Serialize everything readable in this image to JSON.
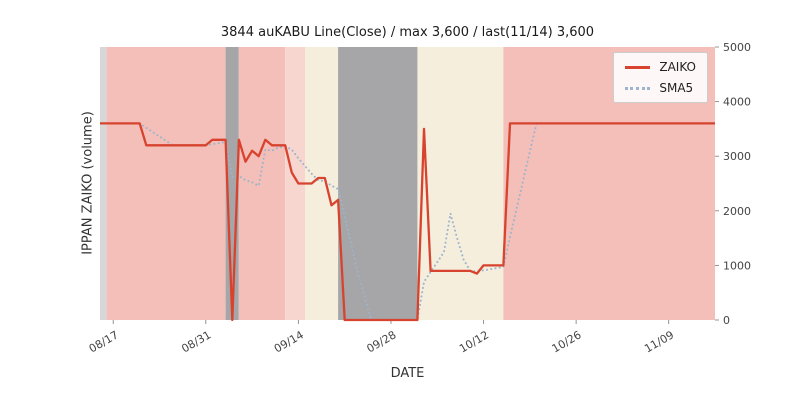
{
  "title": "3844 auKABU Line(Close) / max 3,600 / last(11/14) 3,600",
  "xlabel": "DATE",
  "ylabel": "IPPAN ZAIKO (volume)",
  "legend": {
    "zaiko": "ZAIKO",
    "sma5": "SMA5"
  },
  "colors": {
    "zaiko": "#d7432e",
    "sma5": "#9db4cc",
    "band_pink": "#f3bfb8",
    "band_lightpink": "#f7d6d0",
    "band_cream": "#f5eedd",
    "band_gray": "#a6a6a8",
    "band_lightgray": "#d7d7d7",
    "axis_text": "#444444",
    "tick_mark": "#888888"
  },
  "chart_data": {
    "type": "line",
    "max": 3600,
    "last_date": "11/14",
    "last_value": 3600,
    "n_points": 94,
    "ylim": [
      0,
      5000
    ],
    "yticks": [
      0,
      1000,
      2000,
      3000,
      4000,
      5000
    ],
    "tick_labels": [
      "08/17",
      "08/31",
      "09/14",
      "09/28",
      "10/12",
      "10/26",
      "11/09"
    ],
    "tick_indices": [
      2,
      16,
      30,
      44,
      58,
      72,
      86
    ],
    "series": [
      {
        "name": "ZAIKO",
        "color_key": "zaiko",
        "style": "solid",
        "values": [
          3600,
          3600,
          3600,
          3600,
          3600,
          3600,
          3600,
          3200,
          3200,
          3200,
          3200,
          3200,
          3200,
          3200,
          3200,
          3200,
          3200,
          3300,
          3300,
          3300,
          0,
          3300,
          2900,
          3100,
          3000,
          3300,
          3200,
          3200,
          3200,
          2700,
          2500,
          2500,
          2500,
          2600,
          2600,
          2100,
          2200,
          0,
          0,
          0,
          0,
          0,
          0,
          0,
          0,
          0,
          0,
          0,
          0,
          3500,
          900,
          900,
          900,
          900,
          900,
          900,
          900,
          850,
          1000,
          1000,
          1000,
          1000,
          3600,
          3600,
          3600,
          3600,
          3600,
          3600,
          3600,
          3600,
          3600,
          3600,
          3600,
          3600,
          3600,
          3600,
          3600,
          3600,
          3600,
          3600,
          3600,
          3600,
          3600,
          3600,
          3600,
          3600,
          3600,
          3600,
          3600,
          3600,
          3600,
          3600,
          3600,
          3600
        ]
      },
      {
        "name": "SMA5",
        "color_key": "sma5",
        "style": "dotted",
        "values": [
          null,
          null,
          null,
          null,
          3600,
          3600,
          3600,
          3520,
          3440,
          3360,
          3280,
          3200,
          3200,
          3200,
          3200,
          3200,
          3200,
          3220,
          3240,
          3260,
          2620,
          2640,
          2560,
          2520,
          2460,
          3120,
          3100,
          3160,
          3180,
          3120,
          2960,
          2820,
          2680,
          2560,
          2540,
          2460,
          2400,
          1900,
          1380,
          860,
          440,
          0,
          0,
          0,
          0,
          0,
          0,
          0,
          0,
          700,
          880,
          1060,
          1240,
          1950,
          1500,
          1100,
          900,
          890,
          910,
          930,
          950,
          970,
          1520,
          2040,
          2560,
          3080,
          3600,
          3600,
          3600,
          3600,
          3600,
          3600,
          3600,
          3600,
          3600,
          3600,
          3600,
          3600,
          3600,
          3600,
          3600,
          3600,
          3600,
          3600,
          3600,
          3600,
          3600,
          3600,
          3600,
          3600,
          3600,
          3600,
          3600,
          3600
        ]
      }
    ],
    "bands": [
      {
        "from": 0,
        "to": 1,
        "color_key": "band_lightgray"
      },
      {
        "from": 1,
        "to": 19,
        "color_key": "band_pink"
      },
      {
        "from": 19,
        "to": 21,
        "color_key": "band_gray"
      },
      {
        "from": 21,
        "to": 28,
        "color_key": "band_pink"
      },
      {
        "from": 28,
        "to": 31,
        "color_key": "band_lightpink"
      },
      {
        "from": 31,
        "to": 36,
        "color_key": "band_cream"
      },
      {
        "from": 36,
        "to": 48,
        "color_key": "band_gray"
      },
      {
        "from": 48,
        "to": 61,
        "color_key": "band_cream"
      },
      {
        "from": 61,
        "to": 93,
        "color_key": "band_pink"
      }
    ]
  }
}
